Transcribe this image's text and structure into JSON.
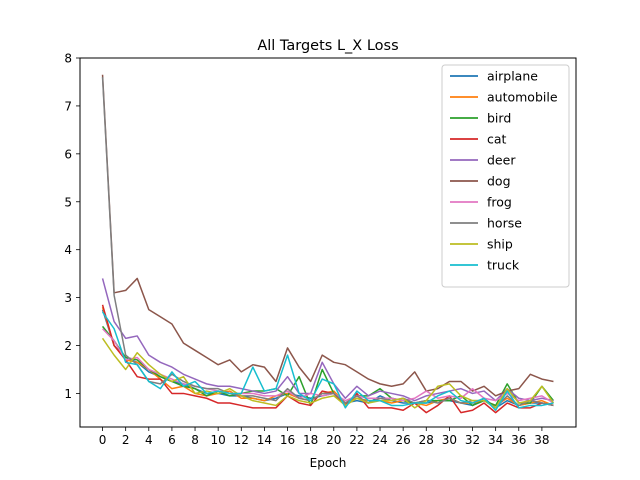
{
  "chart_data": {
    "type": "line",
    "title": "All Targets L_X Loss",
    "xlabel": "Epoch",
    "ylabel": "",
    "xlim": [
      -1.95,
      40.95
    ],
    "ylim": [
      0.3,
      8.0
    ],
    "xticks": [
      0,
      2,
      4,
      6,
      8,
      10,
      12,
      14,
      16,
      18,
      20,
      22,
      24,
      26,
      28,
      30,
      32,
      34,
      36,
      38
    ],
    "yticks": [
      1,
      2,
      3,
      4,
      5,
      6,
      7,
      8
    ],
    "grid": false,
    "legend_position": "top-right",
    "x": [
      0,
      1,
      2,
      3,
      4,
      5,
      6,
      7,
      8,
      9,
      10,
      11,
      12,
      13,
      14,
      15,
      16,
      17,
      18,
      19,
      20,
      21,
      22,
      23,
      24,
      25,
      26,
      27,
      28,
      29,
      30,
      31,
      32,
      33,
      34,
      35,
      36,
      37,
      38,
      39
    ],
    "series": [
      {
        "name": "airplane",
        "color": "#1f77b4",
        "values": [
          2.75,
          2.0,
          1.75,
          1.65,
          1.45,
          1.35,
          1.25,
          1.2,
          1.1,
          1.0,
          1.0,
          0.95,
          0.95,
          0.9,
          0.85,
          0.9,
          1.0,
          0.95,
          0.9,
          0.95,
          1.0,
          0.8,
          0.85,
          0.8,
          0.95,
          0.85,
          0.8,
          0.8,
          0.8,
          0.85,
          0.85,
          0.8,
          0.75,
          0.9,
          0.7,
          0.85,
          0.75,
          0.8,
          0.8,
          0.75
        ]
      },
      {
        "name": "automobile",
        "color": "#ff7f0e",
        "values": [
          2.8,
          2.0,
          1.7,
          1.65,
          1.5,
          1.3,
          1.1,
          1.15,
          1.0,
          0.95,
          1.0,
          1.05,
          0.9,
          0.9,
          0.85,
          0.95,
          1.0,
          0.9,
          0.85,
          1.0,
          1.05,
          0.8,
          0.9,
          0.85,
          0.85,
          0.8,
          0.85,
          0.8,
          0.75,
          0.85,
          0.9,
          0.8,
          0.8,
          0.85,
          0.75,
          0.9,
          0.75,
          0.8,
          0.85,
          0.75
        ]
      },
      {
        "name": "bird",
        "color": "#2ca02c",
        "values": [
          2.4,
          2.1,
          1.75,
          1.7,
          1.5,
          1.35,
          1.25,
          1.15,
          1.1,
          0.95,
          1.05,
          0.95,
          1.0,
          1.05,
          1.05,
          1.1,
          0.95,
          1.35,
          0.75,
          1.5,
          1.0,
          0.8,
          0.95,
          0.95,
          1.1,
          0.9,
          0.85,
          0.8,
          0.85,
          0.85,
          0.85,
          0.95,
          0.75,
          0.85,
          0.75,
          1.2,
          0.8,
          0.8,
          1.15,
          0.85
        ]
      },
      {
        "name": "cat",
        "color": "#d62728",
        "values": [
          2.85,
          2.0,
          1.7,
          1.35,
          1.3,
          1.3,
          1.0,
          1.0,
          0.95,
          0.9,
          0.8,
          0.8,
          0.75,
          0.7,
          0.7,
          0.7,
          0.95,
          0.8,
          0.75,
          1.05,
          1.0,
          0.75,
          1.0,
          0.7,
          0.7,
          0.7,
          0.65,
          0.8,
          0.6,
          0.75,
          0.95,
          0.6,
          0.65,
          0.8,
          0.6,
          0.8,
          0.7,
          0.7,
          0.8,
          0.75
        ]
      },
      {
        "name": "deer",
        "color": "#9467bd",
        "values": [
          3.4,
          2.5,
          2.15,
          2.2,
          1.8,
          1.65,
          1.55,
          1.4,
          1.3,
          1.2,
          1.15,
          1.15,
          1.1,
          1.05,
          1.0,
          1.05,
          1.35,
          1.0,
          1.0,
          1.65,
          1.2,
          0.9,
          1.15,
          0.95,
          1.05,
          1.0,
          0.95,
          0.85,
          0.95,
          1.0,
          1.05,
          1.1,
          1.0,
          1.05,
          0.85,
          1.1,
          0.9,
          0.85,
          0.9,
          0.85
        ]
      },
      {
        "name": "dog",
        "color": "#8c564b",
        "values": [
          7.65,
          3.1,
          3.15,
          3.4,
          2.75,
          2.6,
          2.45,
          2.05,
          1.9,
          1.75,
          1.6,
          1.7,
          1.45,
          1.6,
          1.55,
          1.25,
          1.95,
          1.55,
          1.25,
          1.8,
          1.65,
          1.6,
          1.45,
          1.3,
          1.2,
          1.15,
          1.2,
          1.45,
          1.05,
          1.1,
          1.25,
          1.25,
          1.05,
          1.15,
          0.95,
          1.05,
          1.1,
          1.4,
          1.3,
          1.25
        ]
      },
      {
        "name": "frog",
        "color": "#e377c2",
        "values": [
          2.35,
          2.1,
          1.7,
          1.75,
          1.5,
          1.4,
          1.3,
          1.2,
          1.15,
          1.1,
          1.05,
          1.0,
          1.0,
          1.0,
          0.95,
          0.95,
          1.05,
          0.9,
          1.0,
          0.95,
          1.0,
          0.85,
          0.95,
          0.9,
          0.9,
          0.9,
          0.85,
          0.9,
          1.05,
          0.9,
          0.95,
          0.9,
          1.1,
          0.9,
          0.85,
          1.0,
          0.85,
          0.9,
          0.95,
          0.8
        ]
      },
      {
        "name": "horse",
        "color": "#7f7f7f",
        "values": [
          7.6,
          3.05,
          1.8,
          1.6,
          1.25,
          1.2,
          1.4,
          1.25,
          1.15,
          1.1,
          1.1,
          1.0,
          0.95,
          0.95,
          0.9,
          0.85,
          1.1,
          0.9,
          0.85,
          1.0,
          1.0,
          0.8,
          0.95,
          0.8,
          0.9,
          0.85,
          0.9,
          0.8,
          0.85,
          0.8,
          0.9,
          0.8,
          0.85,
          0.85,
          0.7,
          0.95,
          0.75,
          0.85,
          0.8,
          0.75
        ]
      },
      {
        "name": "ship",
        "color": "#bcbd22",
        "values": [
          2.15,
          1.8,
          1.5,
          1.85,
          1.6,
          1.4,
          1.25,
          1.35,
          1.0,
          1.05,
          1.0,
          1.1,
          0.95,
          0.85,
          0.8,
          0.75,
          0.95,
          0.85,
          0.8,
          0.9,
          0.95,
          0.75,
          0.9,
          0.8,
          0.85,
          0.85,
          0.9,
          0.7,
          0.85,
          1.15,
          1.2,
          0.95,
          0.85,
          0.85,
          0.7,
          1.1,
          0.8,
          0.85,
          1.15,
          0.8
        ]
      },
      {
        "name": "truck",
        "color": "#17becf",
        "values": [
          2.7,
          2.35,
          1.65,
          1.6,
          1.25,
          1.1,
          1.45,
          1.15,
          1.25,
          1.0,
          1.05,
          1.0,
          1.0,
          1.55,
          1.05,
          1.1,
          1.8,
          1.0,
          0.85,
          1.3,
          1.2,
          0.7,
          1.05,
          0.85,
          0.85,
          0.75,
          0.75,
          0.8,
          0.8,
          0.95,
          1.05,
          0.85,
          0.8,
          0.9,
          0.65,
          1.05,
          0.7,
          0.75,
          0.75,
          0.8
        ]
      }
    ]
  }
}
